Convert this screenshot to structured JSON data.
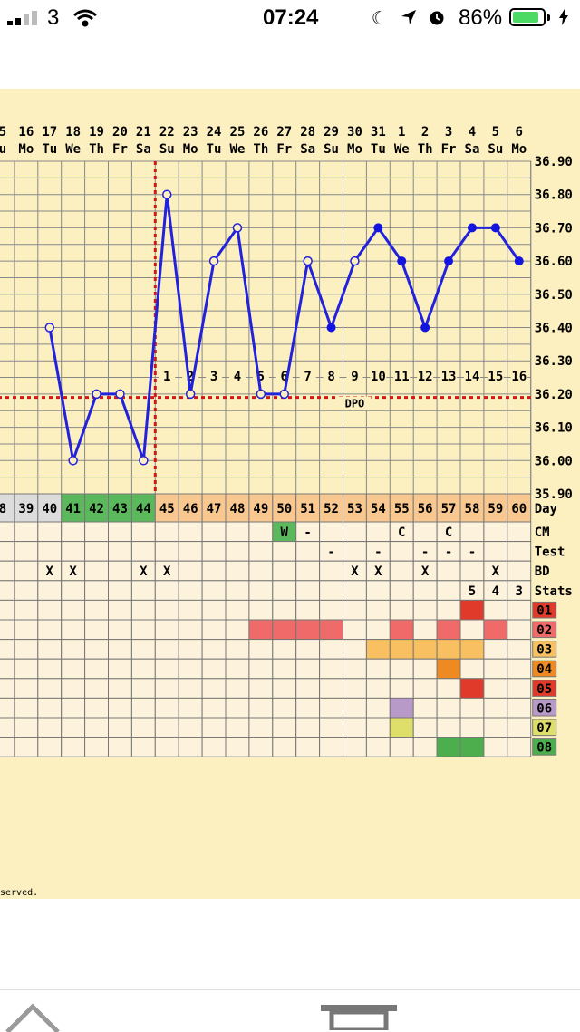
{
  "status_bar": {
    "carrier": "3",
    "time": "07:24",
    "battery": "86%",
    "battery_level": 0.86
  },
  "footer": {
    "text": "served."
  },
  "chart_data": {
    "type": "line",
    "top_dates": [
      "5",
      "16",
      "17",
      "18",
      "19",
      "20",
      "21",
      "22",
      "23",
      "24",
      "25",
      "26",
      "27",
      "28",
      "29",
      "30",
      "31",
      "1",
      "2",
      "3",
      "4",
      "5",
      "6"
    ],
    "top_weekdays": [
      "u",
      "Mo",
      "Tu",
      "We",
      "Th",
      "Fr",
      "Sa",
      "Su",
      "Mo",
      "Tu",
      "We",
      "Th",
      "Fr",
      "Sa",
      "Su",
      "Mo",
      "Tu",
      "We",
      "Th",
      "Fr",
      "Sa",
      "Su",
      "Mo"
    ],
    "cycle_days": [
      "8",
      "39",
      "40",
      "41",
      "42",
      "43",
      "44",
      "45",
      "46",
      "47",
      "48",
      "49",
      "50",
      "51",
      "52",
      "53",
      "54",
      "55",
      "56",
      "57",
      "58",
      "59",
      "60"
    ],
    "day_label": "Day",
    "y_ticks": [
      "35.90",
      "36.00",
      "36.10",
      "36.20",
      "36.30",
      "36.40",
      "36.50",
      "36.60",
      "36.70",
      "36.80",
      "36.90"
    ],
    "ylim": [
      35.9,
      36.9
    ],
    "temps": [
      null,
      null,
      36.4,
      36.0,
      36.2,
      36.2,
      36.0,
      36.8,
      36.2,
      36.6,
      36.7,
      36.2,
      36.2,
      36.6,
      36.4,
      36.6,
      36.7,
      36.6,
      36.4,
      36.6,
      36.7,
      36.7,
      36.6
    ],
    "open_markers": [
      2,
      3,
      4,
      5,
      6,
      7,
      8,
      9,
      10,
      11,
      12,
      13,
      15
    ],
    "solid_markers": [
      14,
      16,
      17,
      18,
      19,
      20,
      21,
      22
    ],
    "coverline": 36.19,
    "ovulation_index": 6,
    "dpo_labels": [
      "1",
      "2",
      "3",
      "4",
      "5",
      "6",
      "7",
      "8",
      "9",
      "10",
      "11",
      "12",
      "13",
      "14",
      "15",
      "16"
    ],
    "dpo_start_index": 7,
    "dpo_text": "DPO",
    "row_labels": [
      "CM",
      "Test",
      "BD",
      "Stats"
    ],
    "cm": [
      null,
      null,
      null,
      null,
      null,
      null,
      null,
      null,
      null,
      null,
      null,
      null,
      "W",
      "-",
      null,
      null,
      null,
      "C",
      null,
      "C",
      null,
      null,
      null
    ],
    "test": [
      null,
      null,
      null,
      null,
      null,
      null,
      null,
      null,
      null,
      null,
      null,
      null,
      null,
      null,
      "-",
      null,
      "-",
      null,
      "-",
      "-",
      "-",
      null,
      null
    ],
    "bd": [
      null,
      null,
      "X",
      "X",
      null,
      null,
      "X",
      "X",
      null,
      null,
      null,
      null,
      null,
      null,
      null,
      "X",
      "X",
      null,
      "X",
      null,
      null,
      "X",
      null
    ],
    "stats": [
      null,
      null,
      null,
      null,
      null,
      null,
      null,
      null,
      null,
      null,
      null,
      null,
      null,
      null,
      null,
      null,
      null,
      null,
      null,
      null,
      "5",
      "4",
      "3"
    ],
    "symptom_labels": [
      "01",
      "02",
      "03",
      "04",
      "05",
      "06",
      "07",
      "08"
    ],
    "symptom_colors": [
      "#e03a2a",
      "#f06a6a",
      "#f8c060",
      "#ef8a22",
      "#e03a2a",
      "#b89ac8",
      "#dede6a",
      "#4cae4c"
    ],
    "symptom_cells": [
      [
        20
      ],
      [
        11,
        12,
        13,
        14,
        17,
        19,
        21
      ],
      [
        16,
        17,
        18,
        19,
        20
      ],
      [
        19
      ],
      [
        20
      ],
      [
        17
      ],
      [
        17
      ],
      [
        19,
        20
      ]
    ]
  }
}
